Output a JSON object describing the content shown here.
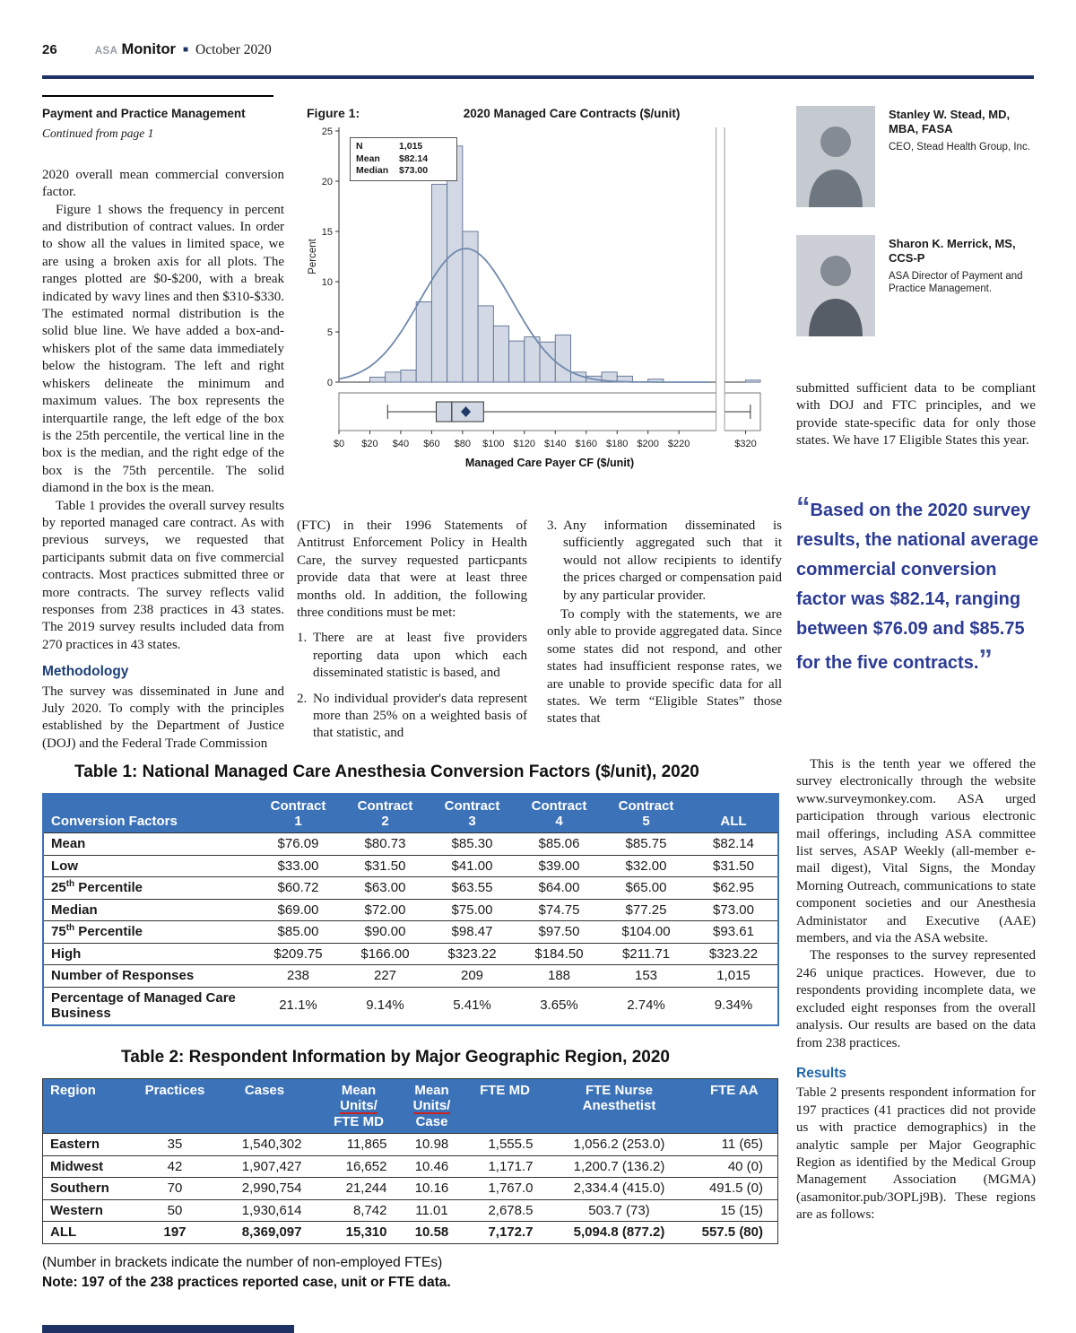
{
  "colors": {
    "accent_navy": "#1e3263",
    "table_header_blue": "#3c72b8",
    "pullquote_blue": "#2c3b94",
    "results_blue": "#2166ac",
    "chart_bar_fill": "#d2d9e5",
    "chart_bar_stroke": "#5d6f93",
    "chart_curve": "#7189ad"
  },
  "header": {
    "page_number": "26",
    "brand_prefix": "ASA",
    "brand_name": "Monitor",
    "separator": "■",
    "issue": "October 2020"
  },
  "article": {
    "section_title": "Payment and Practice Management",
    "continued_note": "Continued from page 1",
    "col1": {
      "p1": "2020 overall mean commercial conversion factor.",
      "p2": "Figure 1 shows the frequency in percent and distribution of contract values. In order to show all the values in limited space, we are using a broken axis for all plots. The ranges plotted are $0-$200, with a break indicated by wavy lines and then $310-$330. The estimated normal distribution is the solid blue line. We have added a box-and-whiskers plot of the same data immediately below the histogram. The left and right whiskers delineate the minimum and maximum values. The box represents the interquartile range, the left edge of the box is the 25th percentile, the vertical line in the box is the median, and the right edge of the box is the 75th percentile. The solid diamond in the box is the mean.",
      "p3": "Table 1 provides the overall survey results by reported managed care contract. As with previous surveys, we requested that participants submit data on five commercial contracts. Most practices submitted three or more contracts. The survey reflects valid responses from 238 practices in 43 states. The 2019 survey results included data from 270 practices in 43 states.",
      "methodology_heading": "Methodology",
      "p4": "The survey was disseminated in June and July 2020. To comply with the principles established by the Department of Justice (DOJ) and the Federal Trade Commission"
    },
    "col2": {
      "p1": "(FTC) in their 1996 Statements of Antitrust Enforcement Policy in Health Care, the survey requested particpants provide data that were at least three months old. In addition, the following three conditions must be met:",
      "item1_num": "1.",
      "item1": "There are at least five providers reporting data upon which each disseminated statistic is based, and",
      "item2_num": "2.",
      "item2": "No individual provider's data represent more than 25% on a weighted basis of that statistic, and"
    },
    "col3": {
      "item3_num": "3.",
      "item3": "Any information disseminated is sufficiently aggregated such that it would not allow recipients to identify the prices charged or compensation paid by any particular provider.",
      "p1": "To comply with the statements, we are only able to provide aggregated data. Since some states did not respond, and other states had insufficient response rates, we are unable to provide specific data for all states. We term “Eligible States” those states that"
    },
    "col4": {
      "p1": "submitted sufficient data to be compliant with DOJ and FTC principles, and we provide state-specific data for only those states. We have 17 Eligible States this year.",
      "p2": "This is the tenth year we offered the survey electronically through the website www.surveymonkey.com. ASA urged participation through various electronic mail offerings, including ASA committee list serves, ASAP Weekly (all-member e-mail digest), Vital Signs, the Monday Morning Outreach, communications to state component societies and our Anesthesia Administator and Executive (AAE) members, and via the ASA website.",
      "p3": "The responses to the survey represented 246 unique practices. However, due to respondents providing incomplete data, we excluded eight responses from the overall analysis. Our results are based on the data from 238 practices.",
      "results_heading": "Results",
      "p4": "Table 2 presents respondent information for 197 practices (41 practices did not provide us with practice demographics) in the analytic sample per Major Geographic Region as identified by the Medical Group Management Association (MGMA) (asamonitor.pub/3OPLj9B). These regions are as follows:"
    }
  },
  "authors": [
    {
      "name": "Stanley W. Stead, MD, MBA, FASA",
      "title": "CEO, Stead Health Group, Inc."
    },
    {
      "name": "Sharon K. Merrick, MS, CCS-P",
      "title": "ASA Director of Payment and Practice Management."
    }
  ],
  "pullquote": {
    "open_quote": "“",
    "text": "Based on the 2020 survey results, the national average commercial conversion factor was $82.14, ranging between $76.09 and $85.75 for the five contracts.",
    "close_quote": "”"
  },
  "figure": {
    "label": "Figure 1:"
  },
  "chart_data": {
    "type": "bar",
    "subtype": "histogram-with-boxplot",
    "title": "2020 Managed Care Contracts ($/unit)",
    "xlabel": "Managed Care Payer CF ($/unit)",
    "ylabel": "Percent",
    "ylim": [
      0,
      25
    ],
    "yticks": [
      0,
      5,
      10,
      15,
      20,
      25
    ],
    "xticks": [
      {
        "label": "$0",
        "value": 0
      },
      {
        "label": "$20",
        "value": 20
      },
      {
        "label": "$40",
        "value": 40
      },
      {
        "label": "$60",
        "value": 60
      },
      {
        "label": "$80",
        "value": 80
      },
      {
        "label": "$100",
        "value": 100
      },
      {
        "label": "$120",
        "value": 120
      },
      {
        "label": "$140",
        "value": 140
      },
      {
        "label": "$160",
        "value": 160
      },
      {
        "label": "$180",
        "value": 180
      },
      {
        "label": "$200",
        "value": 200
      },
      {
        "label": "$220",
        "value": 220
      },
      {
        "label": "$320",
        "value": 320
      }
    ],
    "stats": [
      {
        "label": "N",
        "value": "1,015"
      },
      {
        "label": "Mean",
        "value": "$82.14"
      },
      {
        "label": "Median",
        "value": "$73.00"
      }
    ],
    "bin_width": 10,
    "bins": [
      [
        20,
        0.5
      ],
      [
        30,
        1.0
      ],
      [
        40,
        1.2
      ],
      [
        50,
        8.0
      ],
      [
        60,
        19.7
      ],
      [
        70,
        23.5
      ],
      [
        80,
        15.0
      ],
      [
        90,
        7.6
      ],
      [
        100,
        5.6
      ],
      [
        110,
        4.1
      ],
      [
        120,
        4.5
      ],
      [
        130,
        4.0
      ],
      [
        140,
        4.7
      ],
      [
        150,
        1.0
      ],
      [
        160,
        0.6
      ],
      [
        170,
        1.0
      ],
      [
        180,
        0.6
      ],
      [
        200,
        0.3
      ],
      [
        320,
        0.2
      ]
    ],
    "normal_curve": {
      "mean": 82.14,
      "sd": 30
    },
    "axis_break": {
      "between": [
        240,
        310
      ]
    },
    "boxplot": {
      "min": 31.5,
      "q1": 62.95,
      "median": 73.0,
      "q3": 93.61,
      "mean": 82.14,
      "max": 323.22
    },
    "grid": false,
    "legend": "none"
  },
  "table1": {
    "title": "Table 1: National Managed Care Anesthesia Conversion Factors ($/unit), 2020",
    "row_header_label": "Conversion Factors",
    "column_headers": [
      [
        "Contract",
        "1"
      ],
      [
        "Contract",
        "2"
      ],
      [
        "Contract",
        "3"
      ],
      [
        "Contract",
        "4"
      ],
      [
        "Contract",
        "5"
      ],
      [
        "ALL"
      ]
    ],
    "rows": [
      {
        "label": "Mean",
        "values": [
          "$76.09",
          "$80.73",
          "$85.30",
          "$85.06",
          "$85.75",
          "$82.14"
        ]
      },
      {
        "label": "Low",
        "values": [
          "$33.00",
          "$31.50",
          "$41.00",
          "$39.00",
          "$32.00",
          "$31.50"
        ]
      },
      {
        "label": "25th Percentile",
        "values": [
          "$60.72",
          "$63.00",
          "$63.55",
          "$64.00",
          "$65.00",
          "$62.95"
        ]
      },
      {
        "label": "Median",
        "values": [
          "$69.00",
          "$72.00",
          "$75.00",
          "$74.75",
          "$77.25",
          "$73.00"
        ]
      },
      {
        "label": "75th Percentile",
        "values": [
          "$85.00",
          "$90.00",
          "$98.47",
          "$97.50",
          "$104.00",
          "$93.61"
        ]
      },
      {
        "label": "High",
        "values": [
          "$209.75",
          "$166.00",
          "$323.22",
          "$184.50",
          "$211.71",
          "$323.22"
        ]
      },
      {
        "label": "Number of Responses",
        "values": [
          "238",
          "227",
          "209",
          "188",
          "153",
          "1,015"
        ]
      },
      {
        "label": "Percentage of Managed Care Business",
        "values": [
          "21.1%",
          "9.14%",
          "5.41%",
          "3.65%",
          "2.74%",
          "9.34%"
        ]
      }
    ]
  },
  "table2": {
    "title": "Table 2: Respondent Information by Major Geographic Region, 2020",
    "headers": [
      [
        "Region"
      ],
      [
        "Practices"
      ],
      [
        "Cases"
      ],
      [
        "Mean",
        "Units/",
        "FTE MD"
      ],
      [
        "Mean",
        "Units/",
        "Case"
      ],
      [
        "FTE MD"
      ],
      [
        "FTE Nurse",
        "Anesthetist"
      ],
      [
        "FTE AA"
      ]
    ],
    "red_underlined_line": "Units/",
    "rows": [
      {
        "label": "Eastern",
        "values": [
          "35",
          "1,540,302",
          "11,865",
          "10.98",
          "1,555.5",
          "1,056.2 (253.0)",
          "11 (65)"
        ],
        "bold": false
      },
      {
        "label": "Midwest",
        "values": [
          "42",
          "1,907,427",
          "16,652",
          "10.46",
          "1,171.7",
          "1,200.7 (136.2)",
          "40 (0)"
        ],
        "bold": false
      },
      {
        "label": "Southern",
        "values": [
          "70",
          "2,990,754",
          "21,244",
          "10.16",
          "1,767.0",
          "2,334.4 (415.0)",
          "491.5 (0)"
        ],
        "bold": false
      },
      {
        "label": "Western",
        "values": [
          "50",
          "1,930,614",
          "8,742",
          "11.01",
          "2,678.5",
          "503.7 (73)",
          "15 (15)"
        ],
        "bold": false
      },
      {
        "label": "ALL",
        "values": [
          "197",
          "8,369,097",
          "15,310",
          "10.58",
          "7,172.7",
          "5,094.8 (877.2)",
          "557.5 (80)"
        ],
        "bold": true
      }
    ],
    "notes": [
      "(Number in brackets indicate the number of non-employed FTEs)",
      "Note: 197 of the 238 practices reported case, unit or FTE data."
    ]
  }
}
